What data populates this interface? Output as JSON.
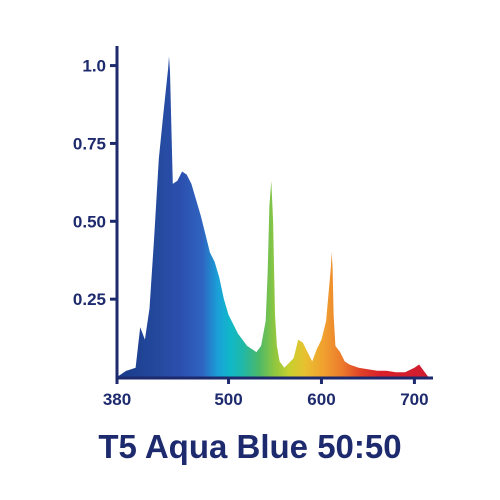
{
  "chart_data": {
    "type": "area",
    "title": "T5 Aqua Blue 50:50",
    "xlabel": "",
    "ylabel": "",
    "xlim": [
      380,
      720
    ],
    "ylim": [
      0,
      1.05
    ],
    "x_ticks": [
      380,
      500,
      600,
      700
    ],
    "x_tick_labels": [
      "380",
      "500",
      "600",
      "700"
    ],
    "y_ticks": [
      0.25,
      0.5,
      0.75,
      1.0
    ],
    "y_tick_labels": [
      "0.25",
      "0.50",
      "0.75",
      "1.0"
    ],
    "fill": "visible-spectrum gradient",
    "grid": false,
    "legend": "none",
    "series": [
      {
        "x": [
          380,
          390,
          400,
          405,
          410,
          415,
          420,
          425,
          430,
          435,
          436,
          437,
          440,
          445,
          450,
          455,
          460,
          465,
          470,
          475,
          480,
          485,
          490,
          495,
          500,
          510,
          520,
          530,
          535,
          540,
          542,
          544,
          546,
          548,
          550,
          552,
          555,
          560,
          570,
          575,
          580,
          585,
          590,
          595,
          600,
          605,
          610,
          611,
          612,
          613,
          615,
          620,
          625,
          630,
          640,
          650,
          660,
          670,
          680,
          690,
          700,
          705,
          710,
          715,
          720
        ],
        "values": [
          0.0,
          0.02,
          0.03,
          0.16,
          0.12,
          0.22,
          0.45,
          0.7,
          0.85,
          0.99,
          1.03,
          0.98,
          0.62,
          0.63,
          0.66,
          0.65,
          0.62,
          0.57,
          0.52,
          0.46,
          0.4,
          0.37,
          0.32,
          0.25,
          0.2,
          0.14,
          0.1,
          0.08,
          0.1,
          0.18,
          0.33,
          0.55,
          0.63,
          0.5,
          0.2,
          0.1,
          0.05,
          0.03,
          0.06,
          0.12,
          0.11,
          0.08,
          0.05,
          0.09,
          0.12,
          0.18,
          0.35,
          0.4,
          0.35,
          0.2,
          0.1,
          0.08,
          0.05,
          0.04,
          0.03,
          0.025,
          0.02,
          0.02,
          0.015,
          0.015,
          0.03,
          0.04,
          0.02,
          0.0,
          0.0
        ]
      }
    ],
    "colors": {
      "axis": "#1e2a6e",
      "title": "#1e2a6e"
    }
  }
}
